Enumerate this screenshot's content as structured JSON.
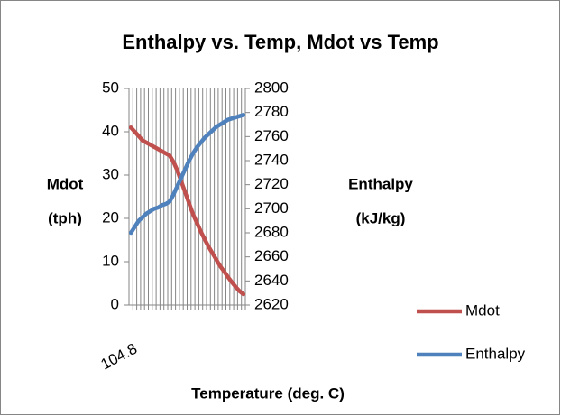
{
  "chart_data": {
    "type": "line",
    "title": "Enthalpy vs. Temp, Mdot vs Temp",
    "x_label": "Temperature (deg. C)",
    "y_label": [
      "Mdot",
      "(tph)"
    ],
    "y2_label": [
      "Enthalpy",
      "(kJ/kg)"
    ],
    "categories": [
      "104.8",
      null,
      null,
      null,
      null,
      null,
      null,
      null,
      null,
      null,
      null,
      null,
      null,
      null,
      null,
      null,
      null,
      null,
      null,
      null,
      null,
      null,
      null,
      null,
      null,
      null,
      null,
      null,
      null,
      null
    ],
    "series": [
      {
        "name": "Mdot",
        "color": "#c0504d",
        "values": [
          41,
          40,
          39,
          38,
          37.5,
          37,
          36.5,
          36,
          35.5,
          35,
          34.5,
          33,
          31,
          28.5,
          26,
          23.5,
          21,
          19,
          17,
          15.2,
          13.5,
          12,
          10.5,
          9,
          7.8,
          6.5,
          5.3,
          4.2,
          3.2,
          2.5
        ]
      },
      {
        "name": "Enthalpy",
        "color": "#4f81bd",
        "axis": "y2",
        "values": [
          2680,
          2685,
          2690,
          2693,
          2696,
          2698,
          2700,
          2701,
          2703,
          2704,
          2706,
          2712,
          2719,
          2726,
          2733,
          2740,
          2746,
          2751,
          2755,
          2759,
          2762,
          2765,
          2768,
          2770,
          2772,
          2774,
          2775,
          2776,
          2777,
          2778
        ]
      }
    ],
    "ylim": [
      0,
      50
    ],
    "yticks": [
      0,
      10,
      20,
      30,
      40,
      50
    ],
    "y2lim": [
      2620,
      2800
    ],
    "y2ticks": [
      2620,
      2640,
      2660,
      2680,
      2700,
      2720,
      2740,
      2760,
      2780,
      2800
    ],
    "xgrid": true,
    "legend": "right"
  }
}
